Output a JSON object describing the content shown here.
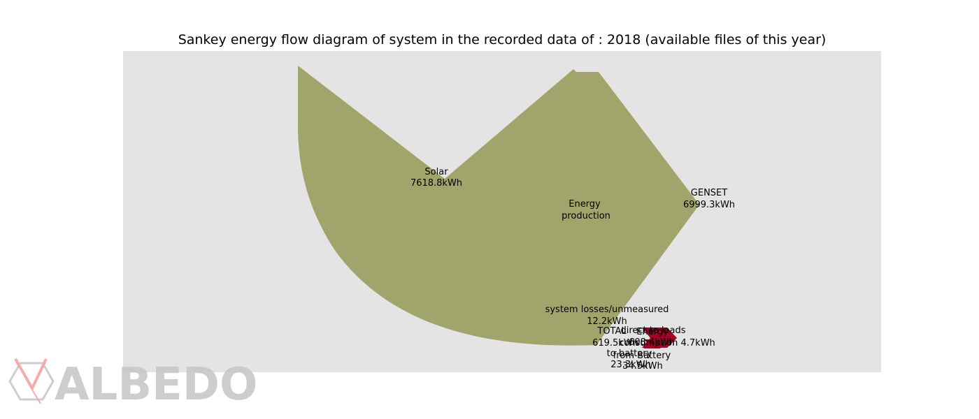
{
  "title": "Sankey energy flow diagram of system in the recorded data of : 2018 (available files of this year)",
  "colors": {
    "plot_background": "#e4e4e4",
    "production_flow": "#a2a56b",
    "output_flow": "#a50026",
    "logo_gray": "#c8c8c8",
    "logo_red": "#f4a3a3"
  },
  "nodes": {
    "solar": {
      "name": "Solar",
      "value": "7618.8kWh"
    },
    "genset": {
      "name": "GENSET",
      "value": "6999.3kWh"
    },
    "center": {
      "line1": "Energy",
      "line2": " production"
    },
    "losses": {
      "name": "system losses/unmeasured",
      "value": "12.2kWh"
    },
    "total": {
      "name": "TOTAL",
      "value": "619.5kWh"
    },
    "direct_loads": {
      "name": "direct to loads",
      "value": "608.4kWh"
    },
    "energy_consumption": {
      "name": "Energy",
      "value": "consumption 4.7kWh"
    },
    "to_battery": {
      "name": "to battery",
      "value": "23.3kWh"
    },
    "from_battery": {
      "name": "from Battery",
      "value": "34.5kWh"
    }
  },
  "logo": {
    "text": "ALBEDO"
  }
}
